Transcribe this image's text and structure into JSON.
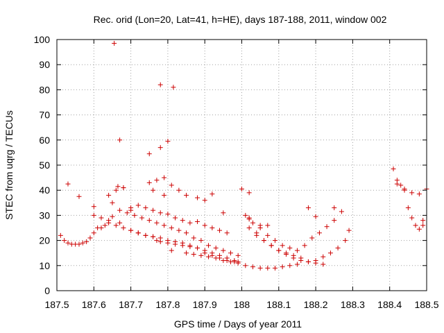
{
  "chart_data": {
    "type": "scatter",
    "title": "Rec. orid (Lon=20, Lat=41, h=HE), days 187-188, 2011, window 002",
    "xlabel": "GPS time / Days of year 2011",
    "ylabel": "STEC from uqrg / TECUs",
    "xlim": [
      187.5,
      188.5
    ],
    "ylim": [
      0,
      100
    ],
    "x_ticks": [
      187.5,
      187.6,
      187.7,
      187.8,
      187.9,
      188,
      188.1,
      188.2,
      188.3,
      188.4,
      188.5
    ],
    "x_tick_labels": [
      "187.5",
      "187.6",
      "187.7",
      "187.8",
      "187.9",
      "188",
      "188.1",
      "188.2",
      "188.3",
      "188.4",
      "188.5"
    ],
    "y_ticks": [
      0,
      10,
      20,
      30,
      40,
      50,
      60,
      70,
      80,
      90,
      100
    ],
    "y_tick_labels": [
      "0",
      "10",
      "20",
      "30",
      "40",
      "50",
      "60",
      "70",
      "80",
      "90",
      "100"
    ],
    "grid": true,
    "marker": "+",
    "marker_color": "#cc0000",
    "x": [
      187.51,
      187.52,
      187.53,
      187.54,
      187.55,
      187.56,
      187.57,
      187.58,
      187.59,
      187.6,
      187.61,
      187.62,
      187.63,
      187.64,
      187.53,
      187.56,
      187.6,
      187.65,
      187.67,
      187.7,
      187.72,
      187.74,
      187.76,
      187.77,
      187.78,
      187.8,
      187.82,
      187.84,
      187.86,
      187.88,
      187.9,
      187.92,
      187.94,
      187.96,
      187.98,
      187.99,
      187.6,
      187.62,
      187.64,
      187.66,
      187.68,
      187.7,
      187.72,
      187.74,
      187.76,
      187.78,
      187.8,
      187.82,
      187.84,
      187.86,
      187.88,
      187.9,
      187.92,
      187.94,
      187.96,
      187.98,
      187.65,
      187.67,
      187.69,
      187.71,
      187.73,
      187.75,
      187.77,
      187.79,
      187.81,
      187.83,
      187.85,
      187.87,
      187.89,
      187.91,
      187.93,
      187.95,
      187.97,
      187.99,
      187.64,
      187.66,
      187.68,
      187.7,
      187.72,
      187.74,
      187.76,
      187.78,
      187.8,
      187.82,
      187.84,
      187.86,
      187.88,
      187.9,
      187.92,
      187.94,
      187.96,
      187.665,
      187.68,
      187.7,
      187.75,
      187.77,
      187.79,
      187.81,
      187.83,
      187.85,
      187.88,
      187.9,
      187.92,
      187.95,
      187.75,
      187.78,
      187.8,
      187.76,
      187.79,
      187.655,
      187.67,
      187.78,
      187.815,
      187.81,
      187.85,
      187.87,
      187.89,
      187.91,
      187.93,
      187.95,
      187.97,
      187.99,
      188.01,
      188.03,
      188.05,
      188.07,
      188.09,
      188.11,
      188.13,
      188.15,
      188.02,
      188.04,
      188.06,
      188.08,
      188.1,
      188.12,
      188.14,
      188.16,
      188.18,
      188.2,
      188.22,
      188.24,
      188.26,
      188.28,
      188.29,
      188.01,
      188.03,
      188.05,
      188.07,
      188.09,
      188.11,
      188.13,
      188.15,
      188.17,
      188.19,
      188.21,
      188.23,
      188.25,
      188.27,
      188.0,
      188.02,
      188.04,
      188.06,
      188.08,
      188.1,
      188.12,
      188.14,
      188.16,
      188.18,
      188.2,
      188.22,
      188.02,
      188.05,
      188.07,
      188.18,
      188.2,
      188.25,
      188.41,
      188.42,
      188.43,
      188.44,
      188.45,
      188.46,
      188.47,
      188.48,
      188.49,
      188.5,
      188.42,
      188.44,
      188.46,
      188.48,
      188.49,
      188.02
    ],
    "y": [
      22,
      20,
      19,
      18.5,
      18.5,
      18.5,
      19,
      19.5,
      21,
      23,
      25,
      25,
      26,
      28,
      42.5,
      37.5,
      33.5,
      29.5,
      27,
      24,
      23,
      22,
      21.5,
      20,
      19.5,
      19,
      18.5,
      18,
      17.5,
      17,
      16,
      15,
      14,
      13,
      12,
      11.5,
      30,
      29,
      27,
      26,
      25,
      24,
      23,
      22,
      21.5,
      21,
      20,
      19.5,
      19,
      18,
      17,
      15,
      14,
      13,
      12,
      11.5,
      35,
      32,
      31,
      30,
      29,
      28,
      27,
      26,
      25,
      24,
      23,
      21,
      20,
      18,
      17,
      16,
      15,
      14,
      38,
      40,
      41,
      33,
      34,
      33,
      32,
      31,
      30.5,
      29,
      28,
      27,
      27.5,
      26,
      25,
      24,
      23,
      41.5,
      41,
      32,
      43,
      44,
      45,
      42,
      40,
      38,
      37,
      36,
      38.5,
      31,
      54.5,
      57,
      59.5,
      40,
      38,
      98.5,
      60,
      82,
      81,
      16,
      15,
      14.5,
      14,
      13.5,
      13,
      12,
      11.5,
      11,
      10,
      9.5,
      9,
      9,
      9,
      9.5,
      10,
      10.5,
      25,
      22,
      20,
      18,
      16,
      14.5,
      13,
      12,
      11.5,
      12,
      13.5,
      15,
      17,
      20,
      24,
      30,
      27,
      25,
      22,
      20,
      18,
      17,
      16,
      18,
      21,
      23,
      25.5,
      28,
      31.5,
      40.5,
      29,
      23,
      20,
      18,
      16,
      15,
      14,
      13,
      11.5,
      11,
      10.5,
      28.5,
      26,
      26,
      33,
      29.5,
      33,
      48.5,
      44,
      42,
      40,
      33,
      29,
      26,
      24.5,
      28,
      40.5,
      42.5,
      40.5,
      39,
      38.5,
      26,
      39
    ]
  }
}
